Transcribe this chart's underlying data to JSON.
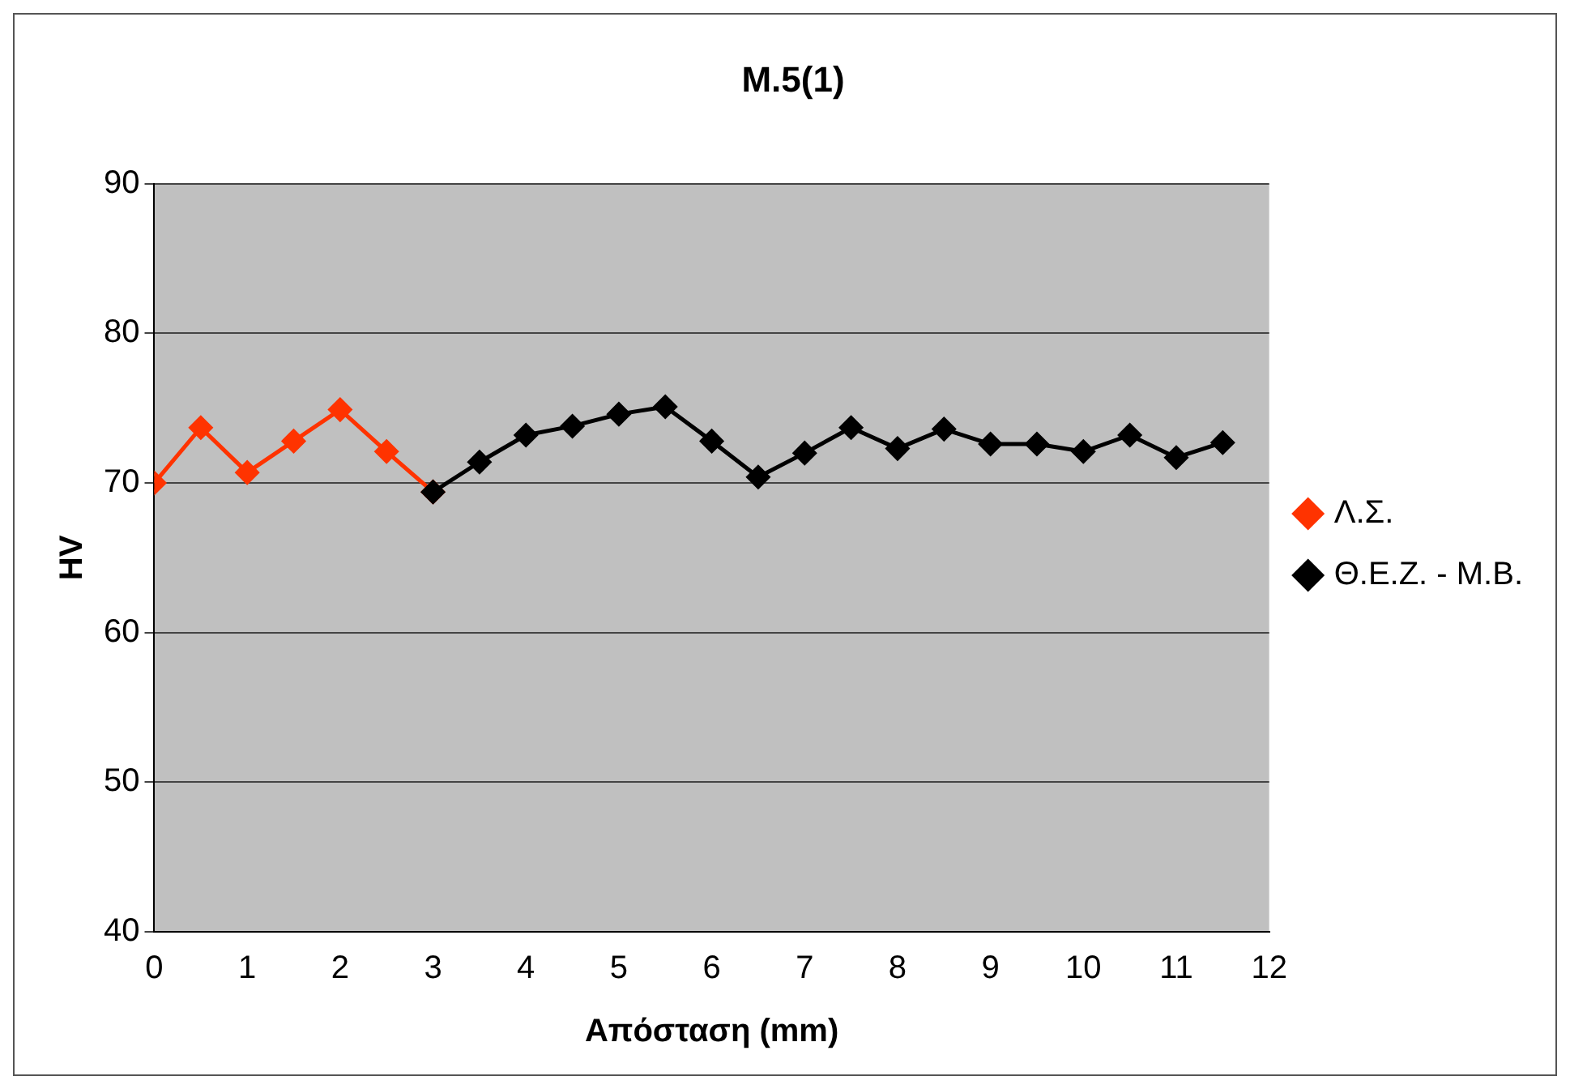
{
  "chart_data": {
    "type": "line",
    "title": "M.5(1)",
    "xlabel": "Απόσταση (mm)",
    "ylabel": "HV",
    "xlim": [
      0,
      12
    ],
    "xticks": [
      0,
      1,
      2,
      3,
      4,
      5,
      6,
      7,
      8,
      9,
      10,
      11,
      12
    ],
    "ylim": [
      40,
      90
    ],
    "yticks": [
      40,
      50,
      60,
      70,
      80,
      90
    ],
    "grid": "y",
    "legend": "right",
    "marker": "diamond",
    "series": [
      {
        "name": "Λ.Σ.",
        "color": "#ff3300",
        "x": [
          0,
          0.5,
          1,
          1.5,
          2,
          2.5,
          3
        ],
        "values": [
          70,
          73.7,
          70.7,
          72.8,
          74.9,
          72.1,
          69.4
        ]
      },
      {
        "name": "Θ.Ε.Ζ. - Μ.Β.",
        "color": "#000000",
        "x": [
          3,
          3.5,
          4,
          4.5,
          5,
          5.5,
          6,
          6.5,
          7,
          7.5,
          8,
          8.5,
          9,
          9.5,
          10,
          10.5,
          11,
          11.5
        ],
        "values": [
          69.4,
          71.4,
          73.2,
          73.8,
          74.6,
          75.1,
          72.8,
          70.4,
          72,
          73.7,
          72.3,
          73.6,
          72.6,
          72.6,
          72.1,
          73.2,
          71.7,
          72.7
        ]
      }
    ]
  }
}
